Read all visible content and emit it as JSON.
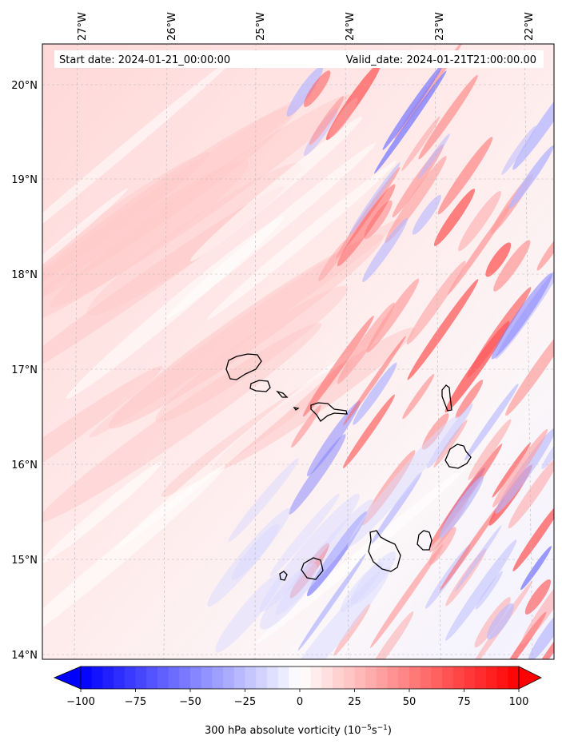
{
  "map": {
    "start_label": "Start date: 2024-01-21_00:00:00",
    "valid_label": "Valid_date: 2024-01-21T21:00:00.00",
    "lon_labels": [
      "27°W",
      "26°W",
      "25°W",
      "24°W",
      "23°W",
      "22°W"
    ],
    "lat_labels": [
      "20°N",
      "19°N",
      "18°N",
      "17°N",
      "16°N",
      "15°N",
      "14°N"
    ],
    "extent": {
      "lon_min": -27.4,
      "lon_max": -21.7,
      "lat_min": 13.95,
      "lat_max": 20.45
    },
    "islands": [
      {
        "name": "Santo Antão"
      },
      {
        "name": "São Vicente"
      },
      {
        "name": "Santa Luzia"
      },
      {
        "name": "Branco"
      },
      {
        "name": "São Nicolau"
      },
      {
        "name": "Sal"
      },
      {
        "name": "Boa Vista"
      },
      {
        "name": "Maio"
      },
      {
        "name": "Santiago"
      },
      {
        "name": "Fogo"
      },
      {
        "name": "Brava"
      }
    ]
  },
  "colorbar": {
    "ticks": [
      "−100",
      "−75",
      "−50",
      "−25",
      "0",
      "25",
      "50",
      "75",
      "100"
    ],
    "tick_values": [
      -100,
      -75,
      -50,
      -25,
      0,
      25,
      50,
      75,
      100
    ],
    "label_prefix": "300 hPa absolute vorticity (10",
    "label_exp1": "−5",
    "label_mid": "s",
    "label_exp2": "−1",
    "label_suffix": ")",
    "colormap": "bwr",
    "color_min": "#0000ff",
    "color_mid": "#ffffff",
    "color_max": "#ff0000"
  }
}
